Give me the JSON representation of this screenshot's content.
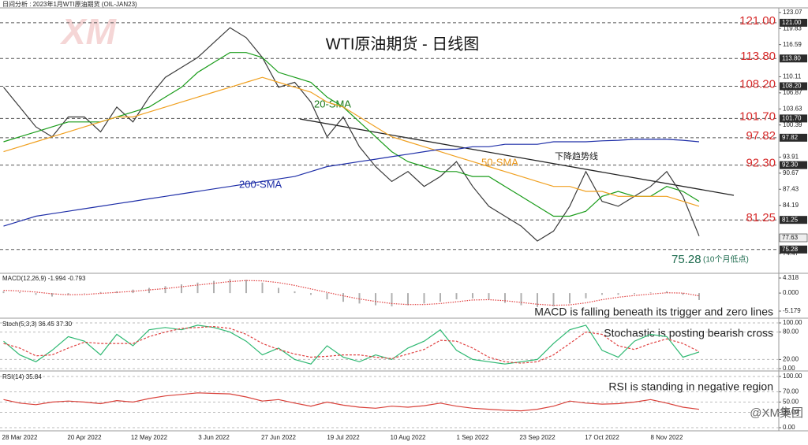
{
  "header": "日间分析 : 2023年1月WTI原油期货 (OIL-JAN23)",
  "watermark": "XM",
  "footer_brand": "@XM集团",
  "chart_data": [
    {
      "type": "line",
      "title": "WTI原油期货 - 日线图",
      "ylim": [
        70.8,
        124.0
      ],
      "yticks": [
        123.07,
        119.83,
        116.59,
        110.11,
        106.87,
        103.63,
        100.39,
        93.91,
        90.67,
        87.43,
        84.19,
        74.47
      ],
      "series": [
        {
          "color": "#3a3a3a",
          "values": [
            108,
            104,
            100,
            98,
            102,
            102,
            99,
            104,
            101,
            106,
            110,
            112,
            114,
            117,
            120,
            118,
            114,
            108,
            109,
            105,
            98,
            102,
            96,
            92,
            89,
            91,
            88,
            90,
            93,
            88,
            84,
            82,
            80,
            77,
            79,
            84,
            91,
            85,
            84,
            86,
            88,
            91,
            86,
            78
          ]
        },
        {
          "name": "20-SMA",
          "color": "#1a9c1a",
          "values": [
            97,
            98,
            99,
            100,
            101,
            101,
            101,
            102,
            103,
            104,
            106,
            108,
            111,
            113,
            115,
            115,
            114,
            111,
            110,
            109,
            106,
            104,
            101,
            98,
            95,
            93,
            92,
            91,
            91,
            90,
            90,
            88,
            86,
            84,
            82,
            82,
            83,
            86,
            87,
            86,
            86,
            88,
            87,
            85
          ]
        },
        {
          "name": "50-SMA",
          "color": "#f0a020",
          "values": [
            95,
            96,
            97,
            98,
            99,
            100,
            101,
            102,
            102,
            103,
            104,
            105,
            106,
            107,
            108,
            109,
            110,
            109,
            108,
            107,
            105,
            104,
            102,
            100,
            98,
            97,
            96,
            95,
            94,
            93,
            92,
            91,
            90,
            89,
            88,
            88,
            87,
            87,
            86,
            86,
            86,
            86,
            85,
            84
          ]
        },
        {
          "name": "200-SMA",
          "color": "#1f2fa8",
          "values": [
            80,
            81,
            82,
            82.5,
            83,
            83.5,
            84,
            84.5,
            85,
            85.5,
            86,
            86.5,
            87,
            87.5,
            88,
            88.5,
            89,
            89.5,
            90,
            91,
            92,
            92.5,
            93,
            93.5,
            94,
            94.5,
            95,
            95.5,
            95.5,
            96,
            96,
            96.5,
            96.5,
            96.5,
            97,
            97,
            97,
            97.2,
            97.3,
            97.5,
            97.5,
            97.5,
            97.3,
            97
          ]
        }
      ],
      "levels": [
        {
          "value": 121,
          "label": "121.00"
        },
        {
          "value": 113.8,
          "label": "113.80"
        },
        {
          "value": 108.2,
          "label": "108.20"
        },
        {
          "value": 101.7,
          "label": "101.70"
        },
        97.82,
        {
          "value": 92.3,
          "label": "92.30"
        },
        81.25
      ],
      "support_low": 75.28,
      "support_low_note": "(10个月低点)",
      "last_price": 77.63,
      "trendline_label": "下降趋势线"
    },
    {
      "type": "macd",
      "header": "MACD(12,26,9) -1.994 -0.793",
      "annotation": "MACD is falling beneath its trigger and zero lines",
      "ylim": [
        -6.76,
        5.45
      ],
      "yticks": [
        4.318,
        {
          "value": 0,
          "label": "0.000"
        },
        -5.179
      ],
      "series": [
        {
          "color": "#b0b0b0",
          "values": [
            0.5,
            0.3,
            -0.5,
            -1.0,
            -0.5,
            0,
            0.3,
            0.5,
            1.0,
            1.5,
            2.0,
            2.5,
            3.0,
            3.5,
            4.0,
            3.8,
            3.0,
            1.5,
            0.5,
            -0.5,
            -1.8,
            -2.5,
            -3.0,
            -3.5,
            -3.8,
            -3.5,
            -3.0,
            -2.5,
            -1.8,
            -1.5,
            -2.0,
            -2.8,
            -3.5,
            -4.0,
            -3.8,
            -3.0,
            -1.5,
            -0.5,
            -0.5,
            -0.3,
            0.2,
            0.5,
            -0.5,
            -2.0
          ]
        },
        {
          "color": "#e04040",
          "style": "dotted",
          "values": [
            0.8,
            0.6,
            0.3,
            -0.2,
            -0.5,
            -0.4,
            -0.1,
            0.2,
            0.5,
            0.9,
            1.3,
            1.8,
            2.3,
            2.8,
            3.3,
            3.6,
            3.5,
            3.0,
            2.2,
            1.2,
            0.2,
            -0.8,
            -1.7,
            -2.4,
            -3.0,
            -3.3,
            -3.3,
            -3.0,
            -2.5,
            -2.0,
            -1.9,
            -2.2,
            -2.7,
            -3.2,
            -3.5,
            -3.4,
            -2.8,
            -1.9,
            -1.2,
            -0.7,
            -0.3,
            0.1,
            0.0,
            -0.8
          ]
        }
      ]
    },
    {
      "type": "line",
      "header": "Stoch(5,3,3) 36.45 37.30",
      "annotation": "Stochastic is posting bearish cross",
      "ylim": [
        -3.4,
        106.9
      ],
      "grid": true,
      "yticks": [
        {
          "value": 100,
          "label": "100.00"
        },
        {
          "value": 80,
          "label": "80.00"
        },
        {
          "value": 20,
          "label": "20.00"
        },
        {
          "value": 0,
          "label": "0.00"
        }
      ],
      "series": [
        {
          "color": "#2eb872",
          "values": [
            60,
            30,
            15,
            40,
            70,
            60,
            30,
            75,
            50,
            85,
            90,
            85,
            95,
            90,
            80,
            60,
            30,
            45,
            20,
            10,
            50,
            25,
            15,
            30,
            20,
            45,
            60,
            85,
            40,
            20,
            15,
            10,
            15,
            20,
            55,
            85,
            95,
            40,
            25,
            60,
            75,
            70,
            25,
            36.45
          ]
        },
        {
          "color": "#e04040",
          "style": "dashed",
          "values": [
            55,
            45,
            28,
            30,
            45,
            58,
            55,
            55,
            55,
            70,
            80,
            88,
            90,
            92,
            88,
            75,
            55,
            42,
            32,
            25,
            27,
            30,
            30,
            25,
            22,
            32,
            42,
            62,
            60,
            45,
            25,
            15,
            12,
            15,
            30,
            55,
            80,
            75,
            50,
            42,
            55,
            65,
            55,
            37.3
          ]
        }
      ]
    },
    {
      "type": "line",
      "header": "RSI(14) 35.84",
      "annotation": "RSI is standing in negative region",
      "ylim": [
        -4.6,
        107.7
      ],
      "grid": true,
      "yticks": [
        {
          "value": 100,
          "label": "100.00"
        },
        {
          "value": 70,
          "label": "70.00"
        },
        {
          "value": 50,
          "label": "50.00"
        },
        {
          "value": 30,
          "label": "30.00"
        },
        {
          "value": 0,
          "label": "0.00"
        }
      ],
      "categories": [
        null,
        "28 Mar 2022",
        null,
        null,
        null,
        "20 Apr 2022",
        null,
        null,
        null,
        "12 May 2022",
        null,
        null,
        null,
        "3 Jun 2022",
        null,
        null,
        null,
        "27 Jun 2022",
        null,
        null,
        null,
        "19 Jul 2022",
        null,
        null,
        null,
        "10 Aug 2022",
        null,
        null,
        null,
        "1 Sep 2022",
        null,
        null,
        null,
        "23 Sep 2022",
        null,
        null,
        null,
        "17 Oct 2022",
        null,
        null,
        null,
        "8 Nov 2022",
        null,
        null
      ],
      "series": [
        {
          "color": "#d9413a",
          "values": [
            55,
            48,
            45,
            50,
            52,
            50,
            47,
            53,
            50,
            57,
            62,
            65,
            68,
            67,
            66,
            60,
            52,
            55,
            48,
            42,
            50,
            44,
            40,
            38,
            42,
            40,
            43,
            48,
            42,
            38,
            36,
            34,
            33,
            36,
            42,
            52,
            48,
            46,
            47,
            50,
            55,
            48,
            40,
            35.84
          ]
        }
      ]
    }
  ]
}
